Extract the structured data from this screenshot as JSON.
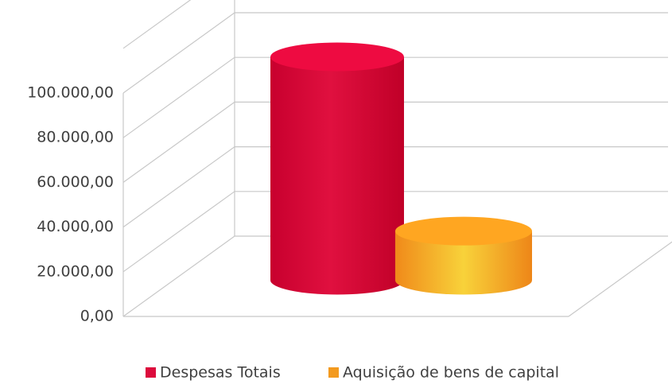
{
  "chart_data": {
    "type": "cylinder",
    "series": [
      {
        "name": "Despesas Totais",
        "color": "#dc0a3c",
        "values": [
          100000
        ]
      },
      {
        "name": "Aquisição de bens de capital",
        "color": "#f39a1f",
        "values": [
          22000
        ]
      }
    ],
    "ylim": [
      0,
      120000
    ],
    "yticks": [
      {
        "value": 0,
        "label": "0,00"
      },
      {
        "value": 20000,
        "label": "20.000,00"
      },
      {
        "value": 40000,
        "label": "40.000,00"
      },
      {
        "value": 60000,
        "label": "60.000,00"
      },
      {
        "value": 80000,
        "label": "80.000,00"
      },
      {
        "value": 100000,
        "label": "100.000,00"
      }
    ],
    "grid": true,
    "legend": "bottom"
  }
}
